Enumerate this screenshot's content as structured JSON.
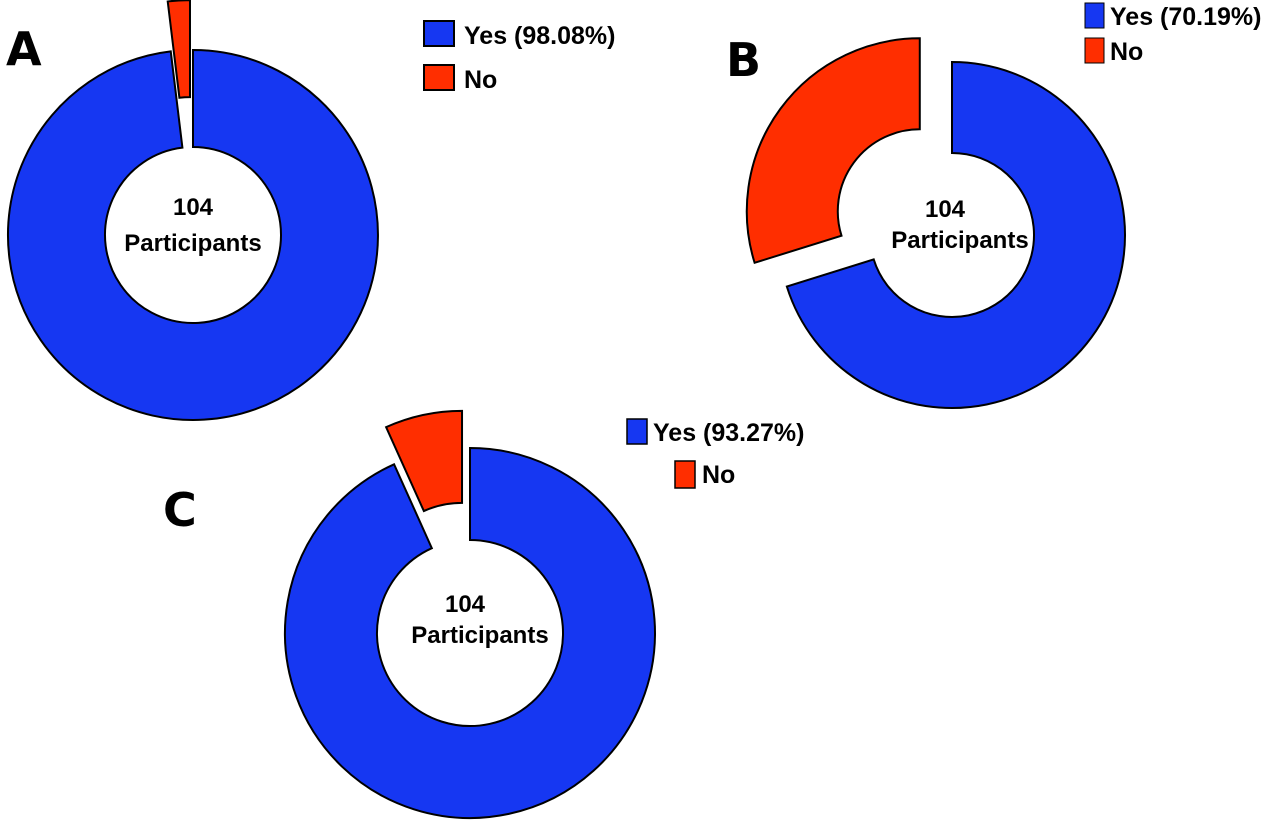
{
  "colors": {
    "yes": "#1637f2",
    "no": "#ff2e00"
  },
  "chart_data": [
    {
      "type": "pie",
      "panel_label": "A",
      "center_lines": [
        "104",
        "Participants"
      ],
      "slices": [
        {
          "label": "Yes (98.08%)",
          "value": 98.08,
          "color": "#1637f2"
        },
        {
          "label": "No",
          "value": 1.92,
          "color": "#ff2e00"
        }
      ]
    },
    {
      "type": "pie",
      "panel_label": "B",
      "center_lines": [
        "104",
        "Participants"
      ],
      "slices": [
        {
          "label": "Yes (70.19%)",
          "value": 70.19,
          "color": "#1637f2"
        },
        {
          "label": "No",
          "value": 29.81,
          "color": "#ff2e00"
        }
      ]
    },
    {
      "type": "pie",
      "panel_label": "C",
      "center_lines": [
        "104",
        "Participants"
      ],
      "slices": [
        {
          "label": "Yes (93.27%)",
          "value": 93.27,
          "color": "#1637f2"
        },
        {
          "label": "No",
          "value": 6.73,
          "color": "#ff2e00"
        }
      ]
    }
  ]
}
